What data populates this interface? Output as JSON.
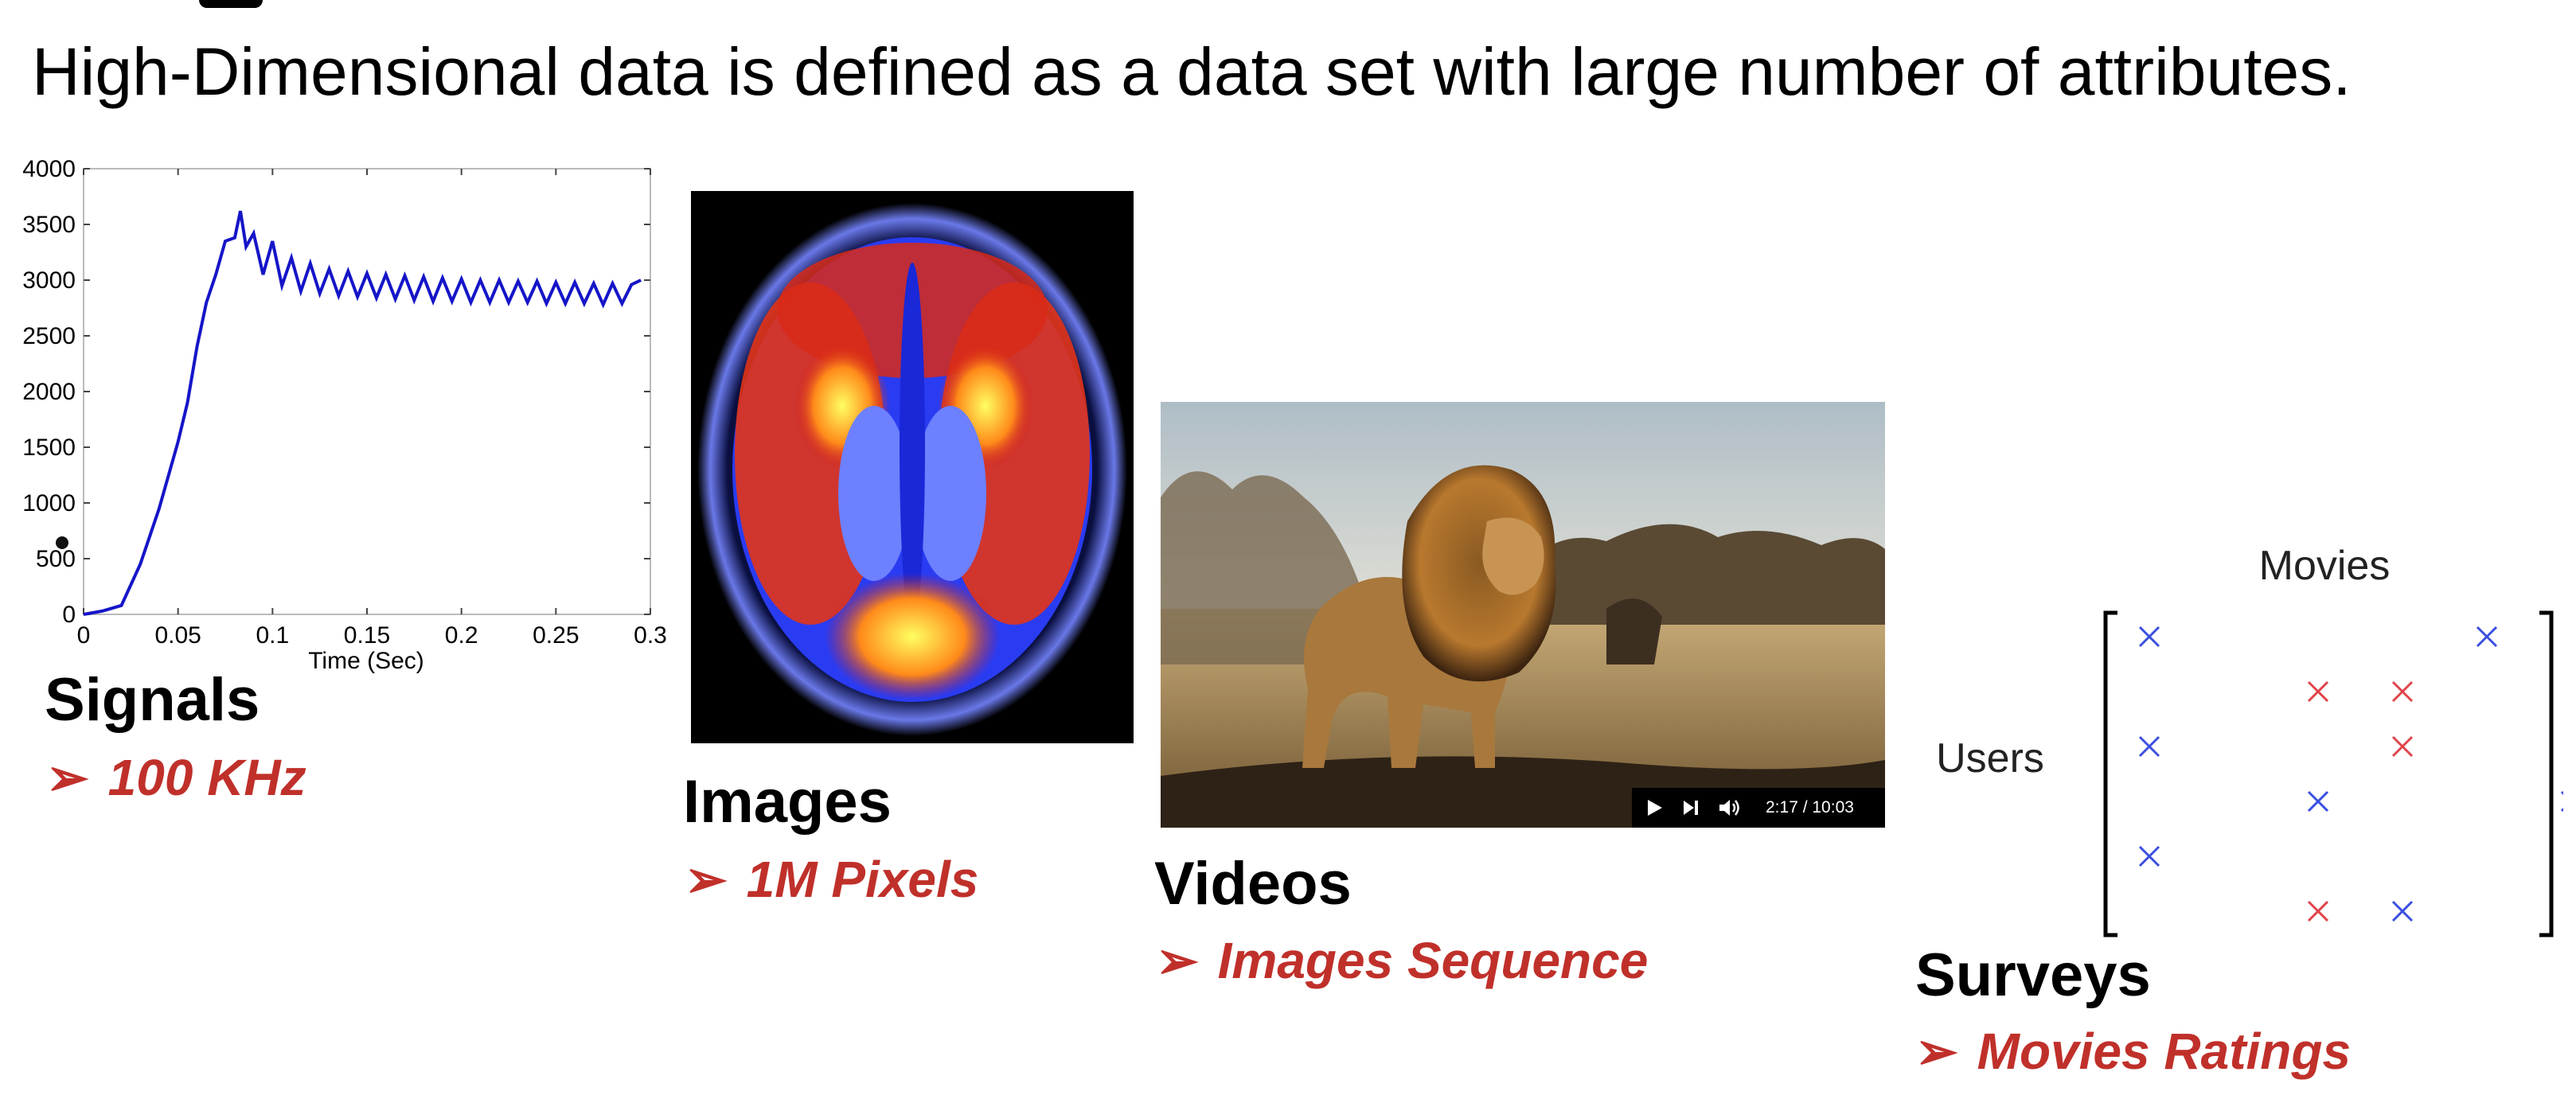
{
  "headline": "High-Dimensional data is defined as a data set with large number of attributes.",
  "sections": {
    "signals": {
      "title": "Signals",
      "subtitle": "100 KHz"
    },
    "images": {
      "title": "Images",
      "subtitle": "1M Pixels"
    },
    "videos": {
      "title": "Videos",
      "subtitle": "Images Sequence"
    },
    "surveys": {
      "title": "Surveys",
      "subtitle": "Movies Ratings"
    }
  },
  "arrow_glyph": "➢",
  "video_player": {
    "time": "2:17 / 10:03"
  },
  "matrix": {
    "column_label": "Movies",
    "row_label": "Users",
    "colors": {
      "blue": "#3a4fe0",
      "red": "#e0444a"
    },
    "marks": [
      {
        "row": 0,
        "col": 0,
        "color": "blue"
      },
      {
        "row": 0,
        "col": 4,
        "color": "blue"
      },
      {
        "row": 1,
        "col": 2,
        "color": "red"
      },
      {
        "row": 1,
        "col": 3,
        "color": "red"
      },
      {
        "row": 2,
        "col": 0,
        "color": "blue"
      },
      {
        "row": 2,
        "col": 3,
        "color": "red"
      },
      {
        "row": 3,
        "col": 2,
        "color": "blue"
      },
      {
        "row": 3,
        "col": 5,
        "color": "blue"
      },
      {
        "row": 4,
        "col": 0,
        "color": "blue"
      },
      {
        "row": 5,
        "col": 2,
        "color": "red"
      },
      {
        "row": 5,
        "col": 3,
        "color": "blue"
      }
    ]
  },
  "chart_data": {
    "type": "line",
    "title": "",
    "xlabel": "Time (Sec)",
    "ylabel": "",
    "xlim": [
      0,
      0.3
    ],
    "ylim": [
      0,
      4000
    ],
    "xticks": [
      0,
      0.05,
      0.1,
      0.15,
      0.2,
      0.25,
      0.3
    ],
    "xtick_labels": [
      "0",
      "0.05",
      "0.1",
      "0.15",
      "0.2",
      "0.25",
      "0.3"
    ],
    "yticks": [
      0,
      500,
      1000,
      1500,
      2000,
      2500,
      3000,
      3500,
      4000
    ],
    "ytick_labels": [
      "0",
      "500",
      "1000",
      "1500",
      "2000",
      "2500",
      "3000",
      "3500",
      "4000"
    ],
    "line_color": "#1515c8",
    "series": [
      {
        "name": "signal",
        "x": [
          0.0,
          0.01,
          0.02,
          0.03,
          0.04,
          0.05,
          0.055,
          0.06,
          0.065,
          0.07,
          0.075,
          0.08,
          0.083,
          0.086,
          0.09,
          0.095,
          0.1,
          0.105,
          0.11,
          0.115,
          0.12,
          0.125,
          0.13,
          0.135,
          0.14,
          0.145,
          0.15,
          0.155,
          0.16,
          0.165,
          0.17,
          0.175,
          0.18,
          0.185,
          0.19,
          0.195,
          0.2,
          0.205,
          0.21,
          0.215,
          0.22,
          0.225,
          0.23,
          0.235,
          0.24,
          0.245,
          0.25,
          0.255,
          0.26,
          0.265,
          0.27,
          0.275,
          0.28,
          0.285,
          0.29,
          0.295
        ],
        "y": [
          0,
          30,
          80,
          450,
          950,
          1550,
          1900,
          2400,
          2800,
          3050,
          3350,
          3380,
          3620,
          3300,
          3420,
          3050,
          3350,
          2950,
          3200,
          2900,
          3150,
          2880,
          3100,
          2860,
          3080,
          2850,
          3060,
          2840,
          3050,
          2830,
          3040,
          2820,
          3030,
          2810,
          3020,
          2810,
          3010,
          2800,
          3000,
          2800,
          3000,
          2800,
          2990,
          2800,
          2990,
          2790,
          2980,
          2790,
          2980,
          2790,
          2970,
          2780,
          2970,
          2790,
          2960,
          3000
        ]
      }
    ]
  }
}
